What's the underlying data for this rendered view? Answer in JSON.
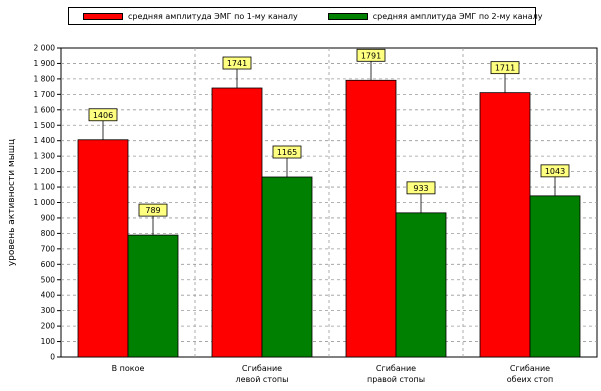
{
  "colors": {
    "series1": "#ff0000",
    "series2": "#008000",
    "label_bg": "#ffff80"
  },
  "chart_data": {
    "type": "bar",
    "title": "",
    "xlabel": "",
    "ylabel": "уровень активности мышц",
    "ylim": [
      0,
      2000
    ],
    "ytick_step": 100,
    "ytick_labels": [
      "0",
      "100",
      "200",
      "300",
      "400",
      "500",
      "600",
      "700",
      "800",
      "900",
      "1 000",
      "1 100",
      "1 200",
      "1 300",
      "1 400",
      "1 500",
      "1 600",
      "1 700",
      "1 800",
      "1 900",
      "2 000"
    ],
    "grid": true,
    "legend_position": "top",
    "categories": [
      [
        "В покое"
      ],
      [
        "Сгибание",
        "левой стопы"
      ],
      [
        "Сгибание",
        "правой стопы"
      ],
      [
        "Сгибание",
        "обеих стоп"
      ]
    ],
    "series": [
      {
        "name": "средняя амплитуда ЭМГ по 1-му каналу",
        "values": [
          1406,
          1741,
          1791,
          1711
        ],
        "labels": [
          "1406",
          "1741",
          "1791",
          "1711"
        ]
      },
      {
        "name": "средняя амплитуда ЭМГ по 2-му каналу",
        "values": [
          789,
          1165,
          933,
          1043
        ],
        "labels": [
          "789",
          "1165",
          "933",
          "1043"
        ]
      }
    ]
  }
}
